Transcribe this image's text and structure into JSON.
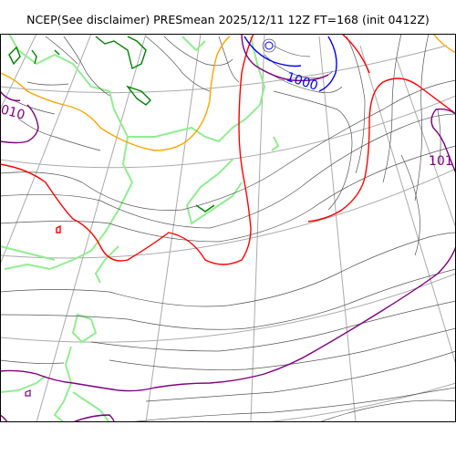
{
  "title": "NCEP(See disclaimer) PRESmean 2025/12/11 12Z FT=168 (init 0412Z)",
  "contour_labels": {
    "label_1000": "1000",
    "label_1010_left": "010",
    "label_1010_right": "101"
  },
  "colors": {
    "contour_default": "#555555",
    "contour_1010": "#800080",
    "contour_1000": "#0000ff",
    "contour_1005": "#ff0000",
    "contour_1015": "#ffa500",
    "coastline": "#90ee90",
    "terrain": "#008000",
    "grid": "#aaaaaa"
  }
}
